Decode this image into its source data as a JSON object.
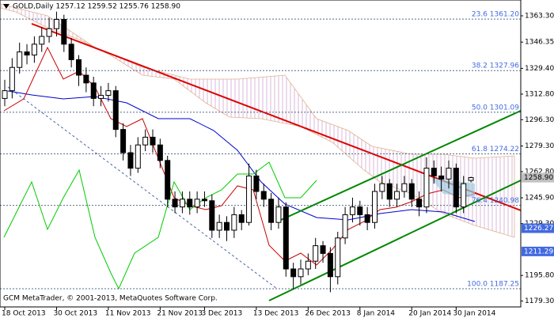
{
  "chart_data": {
    "type": "candlestick",
    "title": "GOLD,Daily  1257.12 1259.52 1255.76 1258.90",
    "footnote": "GCM MetaTrader, © 2001-2013, MetaQuotes Software Corp.",
    "categories": [
      "18 Oct 2013",
      null,
      null,
      null,
      null,
      null,
      null,
      "30 Oct 2013",
      null,
      null,
      null,
      null,
      null,
      null,
      "11 Nov 2013",
      null,
      null,
      null,
      null,
      null,
      null,
      "21 Nov 2013",
      null,
      null,
      null,
      null,
      null,
      "3 Dec 2013",
      null,
      null,
      null,
      null,
      null,
      null,
      "13 Dec 2013",
      null,
      null,
      null,
      null,
      null,
      null,
      "26 Dec 2013",
      null,
      null,
      null,
      null,
      null,
      null,
      "8 Jan 2014",
      null,
      null,
      null,
      null,
      null,
      null,
      "20 Jan 2014",
      null,
      null,
      null,
      null,
      null,
      "30 Jan 2014",
      null,
      null
    ],
    "open": [
      1310,
      1315,
      1330,
      1340,
      1338,
      1345,
      1350,
      1355,
      1361,
      1345,
      1335,
      1325,
      1320,
      1310,
      1312,
      1315,
      1290,
      1275,
      1265,
      1280,
      1285,
      1280,
      1270,
      1245,
      1240,
      1245,
      1240,
      1245,
      1244,
      1225,
      1230,
      1225,
      1235,
      1230,
      1260,
      1250,
      1245,
      1230,
      1240,
      1200,
      1195,
      1200,
      1205,
      1215,
      1210,
      1195,
      1220,
      1235,
      1240,
      1235,
      1230,
      1250,
      1255,
      1245,
      1250,
      1255,
      1245,
      1240,
      1265,
      1260,
      1258,
      1265,
      1240,
      1257.12
    ],
    "high": [
      1322,
      1336,
      1346,
      1345,
      1350,
      1356,
      1362,
      1366,
      1364,
      1349,
      1338,
      1330,
      1324,
      1318,
      1320,
      1318,
      1294,
      1280,
      1285,
      1290,
      1290,
      1284,
      1273,
      1250,
      1250,
      1250,
      1250,
      1250,
      1248,
      1235,
      1234,
      1240,
      1238,
      1268,
      1264,
      1255,
      1249,
      1246,
      1243,
      1204,
      1206,
      1210,
      1220,
      1218,
      1214,
      1224,
      1240,
      1246,
      1244,
      1240,
      1255,
      1260,
      1258,
      1255,
      1260,
      1258,
      1250,
      1272,
      1270,
      1266,
      1270,
      1268,
      1260,
      1259.52
    ],
    "low": [
      1305,
      1310,
      1326,
      1332,
      1333,
      1340,
      1346,
      1350,
      1340,
      1330,
      1318,
      1314,
      1305,
      1305,
      1308,
      1285,
      1270,
      1260,
      1262,
      1276,
      1275,
      1265,
      1240,
      1236,
      1236,
      1235,
      1236,
      1240,
      1220,
      1220,
      1218,
      1220,
      1225,
      1228,
      1245,
      1240,
      1225,
      1226,
      1195,
      1187,
      1190,
      1196,
      1200,
      1204,
      1185,
      1190,
      1216,
      1230,
      1228,
      1225,
      1226,
      1245,
      1240,
      1240,
      1246,
      1240,
      1234,
      1236,
      1255,
      1250,
      1252,
      1236,
      1236,
      1255.76
    ],
    "close": [
      1315,
      1330,
      1340,
      1338,
      1345,
      1350,
      1355,
      1361,
      1345,
      1335,
      1325,
      1320,
      1310,
      1312,
      1315,
      1290,
      1275,
      1265,
      1280,
      1285,
      1280,
      1270,
      1245,
      1240,
      1245,
      1240,
      1245,
      1244,
      1225,
      1230,
      1225,
      1235,
      1230,
      1260,
      1250,
      1245,
      1230,
      1240,
      1200,
      1195,
      1200,
      1205,
      1215,
      1210,
      1195,
      1220,
      1235,
      1240,
      1235,
      1230,
      1250,
      1255,
      1245,
      1250,
      1255,
      1245,
      1240,
      1265,
      1260,
      1258,
      1265,
      1240,
      1255,
      1258.9
    ],
    "up_color": "#ffffff",
    "down_color": "#000000",
    "ylim": [
      1175.5,
      1373.5
    ],
    "yticks": [
      {
        "value": 1363.3,
        "label": "1363.30"
      },
      {
        "value": 1346.35,
        "label": "1346.35"
      },
      {
        "value": 1329.4,
        "label": "1329.40"
      },
      {
        "value": 1312.8,
        "label": "1312.80"
      },
      {
        "value": 1296.3,
        "label": "1296.30"
      },
      {
        "value": 1279.3,
        "label": "1279.30"
      },
      {
        "value": 1262.8,
        "label": "1262.80"
      },
      {
        "value": 1245.9,
        "label": "1245.90"
      },
      {
        "value": 1229.3,
        "label": "1229.30"
      },
      {
        "value": 1195.8,
        "label": "1195.80"
      },
      {
        "value": 1179.3,
        "label": "1179.30"
      }
    ],
    "fib_levels": [
      {
        "value": 1361.2,
        "label": "23.6 1361.20"
      },
      {
        "value": 1327.96,
        "label": "38.2 1327.96"
      },
      {
        "value": 1301.09,
        "label": "50.0 1301.09"
      },
      {
        "value": 1274.22,
        "label": "61.8 1274.22"
      },
      {
        "value": 1240.98,
        "label": "76.4 1240.98"
      },
      {
        "value": 1187.25,
        "label": "100.0 1187.25"
      }
    ],
    "price_tags": [
      {
        "value": 1258.9,
        "label": "1258.90",
        "color": "#c0c0c0"
      },
      {
        "value": 1226.27,
        "label": "1226.27",
        "color": "#4169e1"
      },
      {
        "value": 1211.29,
        "label": "1211.29",
        "color": "#4169e1"
      }
    ]
  }
}
